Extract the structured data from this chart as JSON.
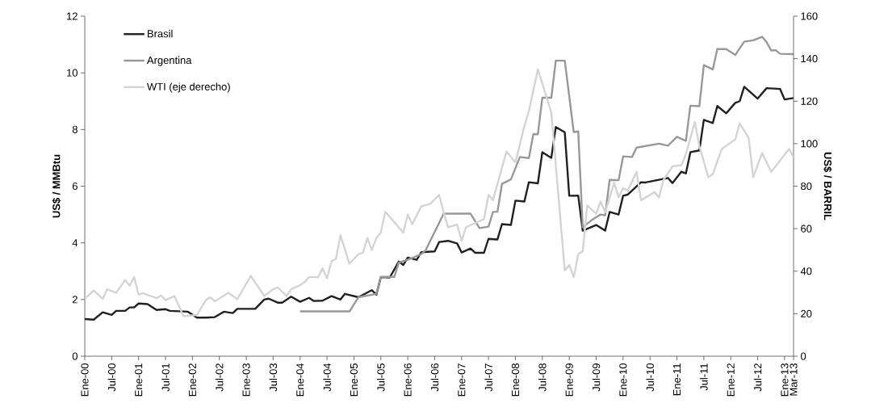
{
  "chart_data": {
    "type": "line",
    "ylabel": "US$ / MMBtu",
    "y2label": "US$ / BARRIL",
    "xlim": [
      "2000-01",
      "2013-03"
    ],
    "xticks": [
      {
        "value": "2000-01",
        "label": "Ene-00"
      },
      {
        "value": "2000-07",
        "label": "Jul-00"
      },
      {
        "value": "2001-01",
        "label": "Ene-01"
      },
      {
        "value": "2001-07",
        "label": "Jul-01"
      },
      {
        "value": "2002-01",
        "label": "Ene-02"
      },
      {
        "value": "2002-07",
        "label": "Jul-02"
      },
      {
        "value": "2003-01",
        "label": "Ene-03"
      },
      {
        "value": "2003-07",
        "label": "Jul-03"
      },
      {
        "value": "2004-01",
        "label": "Ene-04"
      },
      {
        "value": "2004-07",
        "label": "Jul-04"
      },
      {
        "value": "2005-01",
        "label": "Ene-05"
      },
      {
        "value": "2005-07",
        "label": "Jul-05"
      },
      {
        "value": "2006-01",
        "label": "Ene-06"
      },
      {
        "value": "2006-07",
        "label": "Jul-06"
      },
      {
        "value": "2007-01",
        "label": "Ene-07"
      },
      {
        "value": "2007-07",
        "label": "Jul-07"
      },
      {
        "value": "2008-01",
        "label": "Ene-08"
      },
      {
        "value": "2008-07",
        "label": "Jul-08"
      },
      {
        "value": "2009-01",
        "label": "Ene-09"
      },
      {
        "value": "2009-07",
        "label": "Jul-09"
      },
      {
        "value": "2010-01",
        "label": "Ene-10"
      },
      {
        "value": "2010-07",
        "label": "Jul-10"
      },
      {
        "value": "2011-01",
        "label": "Ene-11"
      },
      {
        "value": "2011-07",
        "label": "Jul-11"
      },
      {
        "value": "2012-01",
        "label": "Ene-12"
      },
      {
        "value": "2012-07",
        "label": "Jul-12"
      },
      {
        "value": "2013-01",
        "label": "Ene-13"
      },
      {
        "value": "2013-03",
        "label": "Mar-13"
      }
    ],
    "ylim": [
      0,
      12
    ],
    "yticks": [
      0,
      2,
      4,
      6,
      8,
      10,
      12
    ],
    "y2lim": [
      0,
      160
    ],
    "y2ticks": [
      0,
      20,
      40,
      60,
      80,
      100,
      120,
      140,
      160
    ],
    "legend": "top left",
    "line_style": "solid",
    "series": [
      {
        "name": "Brasil",
        "color": "#231f20",
        "x": [
          "2000-01",
          "2000-03",
          "2000-05",
          "2000-07",
          "2000-08",
          "2000-10",
          "2000-11",
          "2000-12",
          "2001-01",
          "2001-03",
          "2001-05",
          "2001-07",
          "2001-08",
          "2001-12",
          "2002-02",
          "2002-04",
          "2002-06",
          "2002-08",
          "2002-10",
          "2002-11",
          "2003-03",
          "2003-05",
          "2003-06",
          "2003-08",
          "2003-09",
          "2003-11",
          "2004-01",
          "2004-03",
          "2004-04",
          "2004-06",
          "2004-08",
          "2004-10",
          "2004-11",
          "2005-02",
          "2005-05",
          "2005-06",
          "2005-07",
          "2005-09",
          "2005-11",
          "2005-12",
          "2006-01",
          "2006-03",
          "2006-04",
          "2006-07",
          "2006-08",
          "2006-10",
          "2006-12",
          "2007-01",
          "2007-03",
          "2007-04",
          "2007-06",
          "2007-07",
          "2007-09",
          "2007-10",
          "2007-12",
          "2008-01",
          "2008-03",
          "2008-04",
          "2008-06",
          "2008-07",
          "2008-09",
          "2008-10",
          "2008-12",
          "2009-01",
          "2009-03",
          "2009-04",
          "2009-07",
          "2009-09",
          "2009-10",
          "2009-12",
          "2010-01",
          "2010-02",
          "2010-05",
          "2010-06",
          "2010-11",
          "2010-12",
          "2011-02",
          "2011-03",
          "2011-04",
          "2011-06",
          "2011-07",
          "2011-09",
          "2011-10",
          "2011-12",
          "2012-02",
          "2012-03",
          "2012-04",
          "2012-07",
          "2012-09",
          "2012-12",
          "2013-01",
          "2013-03"
        ],
        "values": [
          1.31,
          1.29,
          1.55,
          1.46,
          1.6,
          1.6,
          1.72,
          1.72,
          1.86,
          1.84,
          1.63,
          1.66,
          1.6,
          1.57,
          1.36,
          1.36,
          1.38,
          1.57,
          1.52,
          1.67,
          1.67,
          2.0,
          2.03,
          1.89,
          1.89,
          2.1,
          1.92,
          2.06,
          1.95,
          1.96,
          2.12,
          2.0,
          2.2,
          2.08,
          2.33,
          2.17,
          2.79,
          2.78,
          3.34,
          3.22,
          3.48,
          3.4,
          3.67,
          3.7,
          4.03,
          4.07,
          3.98,
          3.66,
          3.8,
          3.65,
          3.65,
          4.14,
          4.12,
          4.66,
          4.63,
          5.49,
          5.46,
          6.14,
          6.1,
          7.2,
          7.0,
          8.09,
          7.9,
          5.66,
          5.67,
          4.43,
          4.63,
          4.43,
          5.09,
          5.0,
          5.66,
          5.7,
          6.14,
          6.13,
          6.29,
          6.11,
          6.51,
          6.45,
          7.2,
          7.26,
          8.34,
          8.23,
          8.83,
          8.57,
          8.94,
          9.0,
          9.51,
          9.09,
          9.46,
          9.43,
          9.06,
          9.11
        ]
      },
      {
        "name": "Argentina",
        "color": "#989898",
        "x": [
          "2004-01",
          "2004-12",
          "2005-02",
          "2005-06",
          "2005-07",
          "2005-10",
          "2005-11",
          "2006-01",
          "2006-04",
          "2006-05",
          "2006-09",
          "2007-03",
          "2007-05",
          "2007-07",
          "2007-08",
          "2007-09",
          "2007-10",
          "2007-12",
          "2008-02",
          "2008-04",
          "2008-05",
          "2008-06",
          "2008-07",
          "2008-09",
          "2008-10",
          "2008-12",
          "2009-02",
          "2009-03",
          "2009-04",
          "2009-06",
          "2009-08",
          "2009-09",
          "2009-10",
          "2009-12",
          "2010-01",
          "2010-03",
          "2010-04",
          "2010-09",
          "2010-11",
          "2011-01",
          "2011-03",
          "2011-04",
          "2011-06",
          "2011-07",
          "2011-09",
          "2011-10",
          "2011-12",
          "2012-02",
          "2012-04",
          "2012-06",
          "2012-08",
          "2012-09",
          "2012-10",
          "2012-11",
          "2012-12",
          "2013-03"
        ],
        "values": [
          1.58,
          1.58,
          2.08,
          2.2,
          2.8,
          2.8,
          3.3,
          3.4,
          3.6,
          3.74,
          5.03,
          5.03,
          4.52,
          4.57,
          5.09,
          5.1,
          6.08,
          6.24,
          7.03,
          6.99,
          7.84,
          7.83,
          9.12,
          9.12,
          10.43,
          10.43,
          7.91,
          7.93,
          4.55,
          4.8,
          5.0,
          4.97,
          6.22,
          6.21,
          7.05,
          7.03,
          7.36,
          7.5,
          7.43,
          7.74,
          7.6,
          8.84,
          8.82,
          10.27,
          10.12,
          10.84,
          10.84,
          10.63,
          11.1,
          11.15,
          11.27,
          11.08,
          10.79,
          10.8,
          10.67,
          10.66
        ]
      },
      {
        "name": "WTI (eje derecho)",
        "color": "#d4d4d4",
        "axis": "y2",
        "x": [
          "2000-01",
          "2000-03",
          "2000-05",
          "2000-06",
          "2000-08",
          "2000-10",
          "2000-11",
          "2000-12",
          "2001-01",
          "2001-02",
          "2001-05",
          "2001-06",
          "2001-07",
          "2001-09",
          "2001-11",
          "2002-02",
          "2002-04",
          "2002-05",
          "2002-06",
          "2002-09",
          "2002-11",
          "2003-02",
          "2003-05",
          "2003-07",
          "2003-08",
          "2003-10",
          "2003-11",
          "2004-01",
          "2004-02",
          "2004-03",
          "2004-05",
          "2004-06",
          "2004-07",
          "2004-08",
          "2004-09",
          "2004-10",
          "2004-12",
          "2005-02",
          "2005-03",
          "2005-04",
          "2005-05",
          "2005-06",
          "2005-07",
          "2005-08",
          "2005-12",
          "2006-01",
          "2006-02",
          "2006-04",
          "2006-06",
          "2006-08",
          "2006-09",
          "2006-10",
          "2006-12",
          "2007-01",
          "2007-02",
          "2007-04",
          "2007-06",
          "2007-07",
          "2007-08",
          "2007-11",
          "2008-01",
          "2008-03",
          "2008-04",
          "2008-06",
          "2008-09",
          "2008-12",
          "2009-01",
          "2009-02",
          "2009-03",
          "2009-04",
          "2009-05",
          "2009-07",
          "2009-08",
          "2009-09",
          "2009-11",
          "2009-12",
          "2010-01",
          "2010-02",
          "2010-04",
          "2010-05",
          "2010-08",
          "2010-09",
          "2010-10",
          "2010-12",
          "2011-02",
          "2011-03",
          "2011-05",
          "2011-06",
          "2011-08",
          "2011-09",
          "2011-11",
          "2012-02",
          "2012-03",
          "2012-05",
          "2012-06",
          "2012-08",
          "2012-10",
          "2013-02",
          "2013-03"
        ],
        "values": [
          27,
          30.9,
          27,
          31.5,
          29.8,
          35.9,
          33.1,
          37.2,
          29,
          29.6,
          27.3,
          28.6,
          26.4,
          28.3,
          18.8,
          19.4,
          26.4,
          27.7,
          25.8,
          29.8,
          26.8,
          37.8,
          28.3,
          31.5,
          32.4,
          28.3,
          31.5,
          33.4,
          34.9,
          37.2,
          37.2,
          41.3,
          36.6,
          44.7,
          45.8,
          56.9,
          43.5,
          48,
          48.6,
          55.6,
          49.9,
          55.6,
          58.2,
          67.9,
          58.2,
          66.7,
          62,
          70.5,
          71.7,
          75.9,
          67.7,
          60.7,
          62,
          54.4,
          60.7,
          62.6,
          64.5,
          75.9,
          73.4,
          96.3,
          91.2,
          108.3,
          115.3,
          135,
          114.7,
          40.4,
          42.9,
          37.2,
          48,
          49.3,
          70.9,
          67,
          72.8,
          67.7,
          81.6,
          74.7,
          79.1,
          77.8,
          86.7,
          73.4,
          77.2,
          74.7,
          82.9,
          89.3,
          89.9,
          95,
          110.2,
          98.8,
          84.2,
          85.7,
          97.5,
          102,
          109.6,
          102.6,
          84.2,
          95.6,
          86.7,
          97.5,
          93.7
        ]
      }
    ]
  }
}
